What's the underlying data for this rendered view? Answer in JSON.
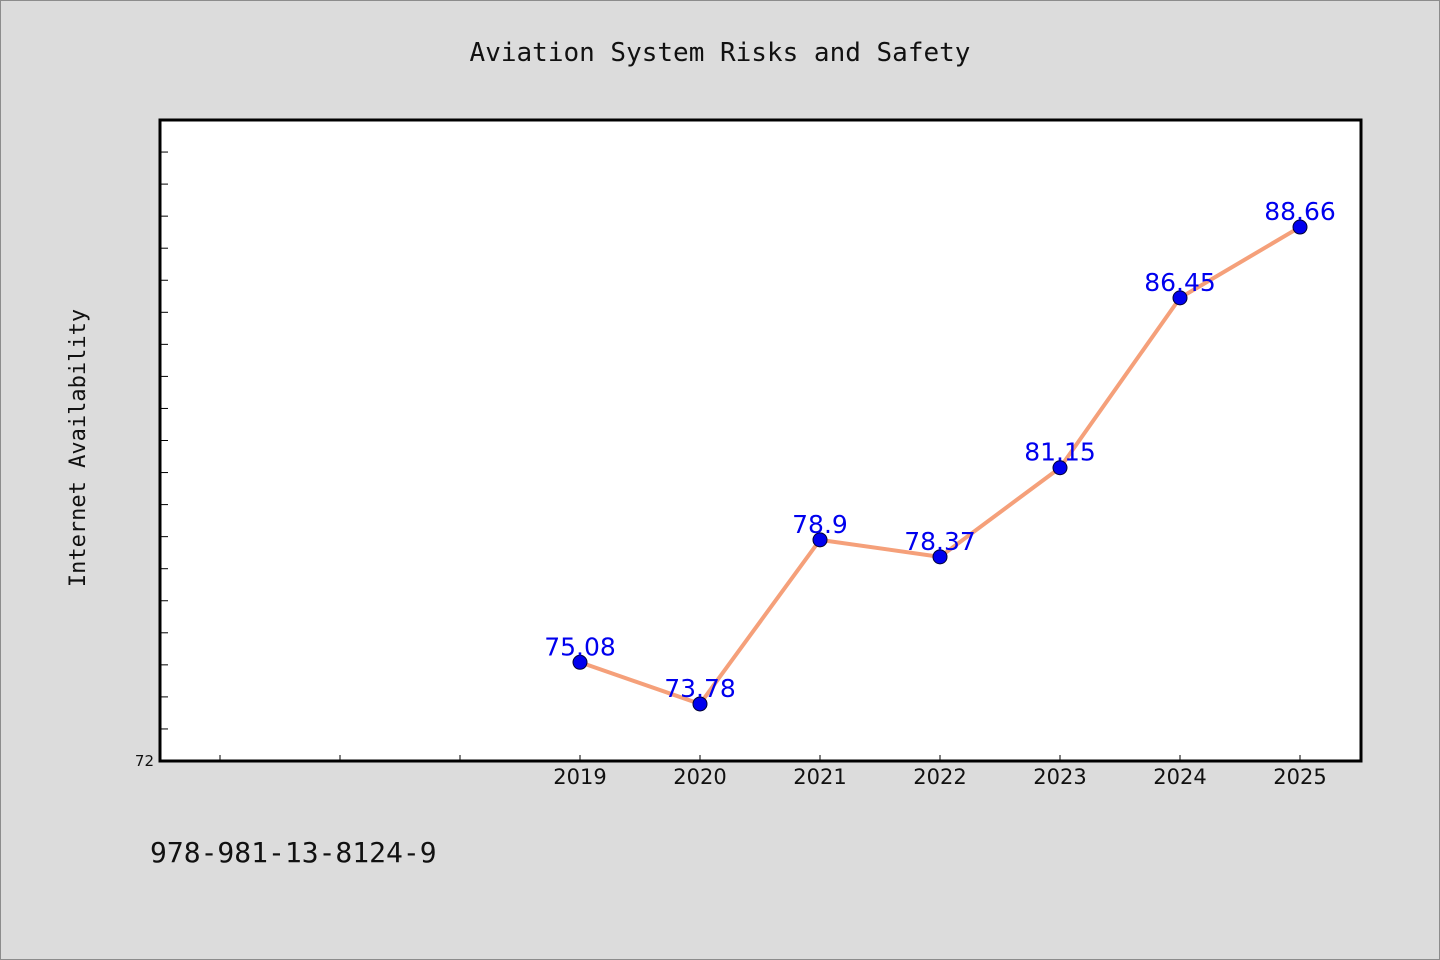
{
  "chart_data": {
    "type": "line",
    "title": "Aviation System Risks and Safety",
    "xlabel": "",
    "ylabel": "Internet Availability",
    "categories": [
      "2019",
      "2020",
      "2021",
      "2022",
      "2023",
      "2024",
      "2025"
    ],
    "series": [
      {
        "values": [
          75.08,
          73.78,
          78.9,
          78.37,
          81.15,
          86.45,
          88.66
        ]
      }
    ],
    "data_labels": [
      "75.08",
      "73.78",
      "78.9",
      "78.37",
      "81.15",
      "86.45",
      "88.66"
    ],
    "ytick_labels": [
      "72"
    ],
    "ylim": [
      72,
      92
    ],
    "grid": false,
    "line_color": "#f5a07a",
    "marker_color": "#0000ee",
    "label_color": "#0000ee"
  },
  "footer": {
    "isbn": "978-981-13-8124-9"
  }
}
